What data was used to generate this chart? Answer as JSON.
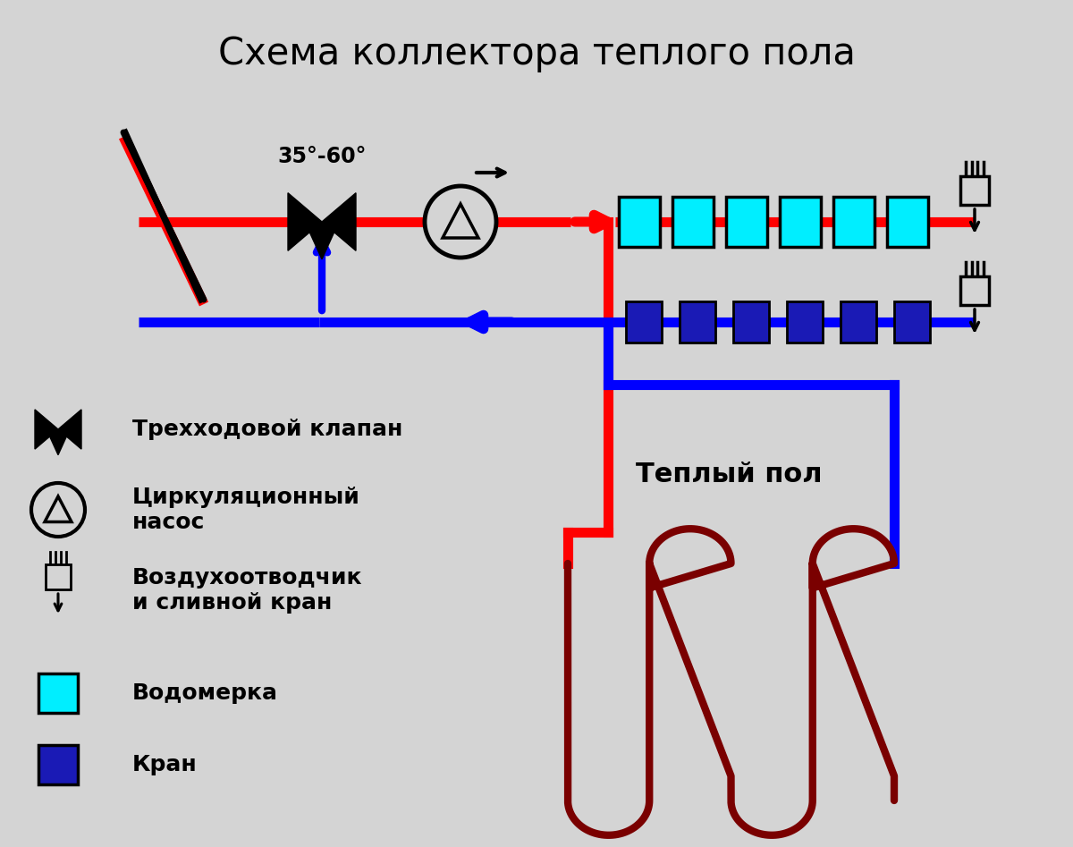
{
  "title": "Схема коллектора теплого пола",
  "bg_color": "#d4d4d4",
  "red": "#ff0000",
  "blue": "#0000ff",
  "dark_red": "#7a0000",
  "cyan": "#00eeff",
  "dark_blue": "#1a1ab5",
  "black": "#000000",
  "temp_label": "35°-60°",
  "warm_floor_label": "Теплый пол",
  "legend": [
    "Трехходовой клапан",
    "Циркуляционный\nнасос",
    "Воздухоотводчик\nи сливной кран",
    "Водомерка",
    "Кран"
  ]
}
